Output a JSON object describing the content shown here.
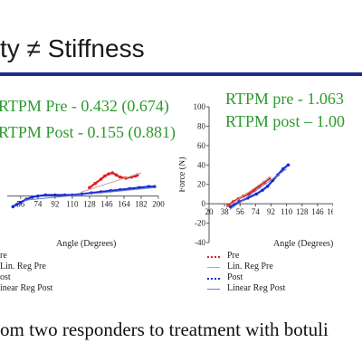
{
  "slide": {
    "title": "ty ≠ Stiffness",
    "caption": "om two responders to treatment with botuli",
    "stats": [
      "RTPM Pre - 0.432 (0.674)",
      "RTPM Post - 0.155 (0.881)",
      "RTPM pre - 1.063",
      "RTPM post – 1.00"
    ],
    "colors": {
      "stats": "#2e9a2e",
      "rule": "#1f2d8a",
      "pre": "#e02020",
      "post": "#1a2fd0"
    }
  },
  "chart_data": [
    {
      "type": "scatter",
      "xlabel": "Angle (Degrees)",
      "ylabel": "",
      "xticks": [
        56,
        74,
        92,
        110,
        128,
        146,
        164,
        182,
        200
      ],
      "xlim": [
        42,
        200
      ],
      "ylim": [
        -20,
        40
      ],
      "legend": [
        "re",
        "Lin. Reg Pre",
        "ost",
        "inear Reg Post"
      ],
      "series": [
        {
          "name": "re",
          "color": "#e02020",
          "x": [
            128,
            134,
            140,
            144,
            148,
            152,
            156,
            160,
            166,
            172,
            176,
            178
          ],
          "y": [
            8,
            12,
            16,
            19,
            21,
            22,
            20,
            18,
            17,
            18,
            19,
            20
          ]
        },
        {
          "name": "Lin. Reg Pre",
          "color": "#c8a0a0",
          "x": [
            120,
            182
          ],
          "y": [
            4,
            22
          ]
        },
        {
          "name": "ost",
          "color": "#1a2fd0",
          "x": [
            48,
            52,
            56,
            62,
            68,
            74,
            82,
            92,
            102,
            110,
            120,
            130,
            140,
            150,
            160,
            170,
            180,
            190,
            196
          ],
          "y": [
            -10,
            -8,
            -6,
            -3,
            -1,
            0,
            1,
            1,
            1,
            1,
            2,
            3,
            4,
            5,
            6,
            7,
            8,
            9,
            9
          ]
        },
        {
          "name": "inear Reg Post",
          "color": "#6a7ad8",
          "x": [
            60,
            196
          ],
          "y": [
            -4,
            8
          ]
        }
      ]
    },
    {
      "type": "scatter",
      "xlabel": "Angle (Degrees)",
      "ylabel": "Force (N)",
      "xticks": [
        20,
        38,
        56,
        74,
        92,
        110,
        128,
        146,
        164
      ],
      "yticks": [
        -40,
        -20,
        0,
        20,
        40,
        60,
        80,
        100
      ],
      "xlim": [
        20,
        164
      ],
      "ylim": [
        -40,
        100
      ],
      "legend": [
        "Pre",
        "Lin. Reg Pre",
        "Post",
        "Linear Reg Post"
      ],
      "series": [
        {
          "name": "Pre",
          "color": "#e02020",
          "x": [
            42,
            48,
            54,
            60,
            66,
            72,
            78,
            84,
            90
          ],
          "y": [
            -2,
            2,
            5,
            8,
            10,
            14,
            18,
            22,
            26
          ]
        },
        {
          "name": "Lin. Reg Pre",
          "color": "#c8a0a0",
          "x": [
            40,
            92
          ],
          "y": [
            -4,
            28
          ]
        },
        {
          "name": "Post",
          "color": "#1a2fd0",
          "x": [
            45,
            55,
            65,
            75,
            82,
            88,
            94,
            100,
            106,
            112
          ],
          "y": [
            -3,
            2,
            6,
            10,
            14,
            18,
            24,
            30,
            36,
            40
          ]
        },
        {
          "name": "Linear Reg Post",
          "color": "#6a7ad8",
          "x": [
            44,
            110
          ],
          "y": [
            -6,
            36
          ]
        }
      ]
    }
  ]
}
